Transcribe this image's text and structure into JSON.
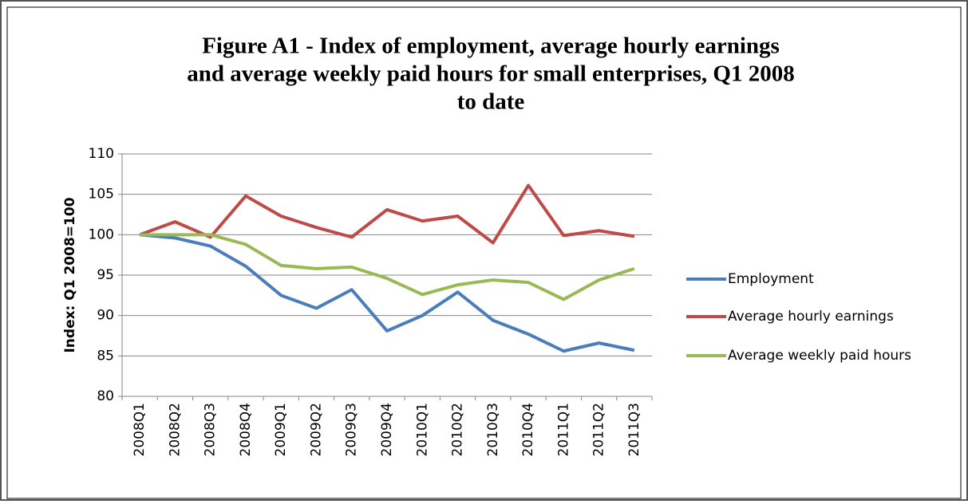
{
  "chart_data": {
    "type": "line",
    "title": [
      "Figure A1 - Index of employment, average hourly earnings",
      "and average weekly paid hours for small enterprises, Q1 2008",
      "to date"
    ],
    "y_label": "Index: Q1 2008=100",
    "categories": [
      "2008Q1",
      "2008Q2",
      "2008Q3",
      "2008Q4",
      "2009Q1",
      "2009Q2",
      "2009Q3",
      "2009Q4",
      "2010Q1",
      "2010Q2",
      "2010Q3",
      "2010Q4",
      "2011Q1",
      "2011Q2",
      "2011Q3"
    ],
    "series": [
      {
        "name": "Employment",
        "color": "#4a7ebb",
        "values": [
          100,
          99.6,
          98.6,
          96.1,
          92.5,
          90.9,
          93.2,
          88.1,
          90.0,
          92.9,
          89.4,
          87.7,
          85.6,
          86.6,
          85.7
        ]
      },
      {
        "name": "Average hourly earnings",
        "color": "#be4b48",
        "values": [
          100,
          101.6,
          99.7,
          104.8,
          102.3,
          100.9,
          99.7,
          103.1,
          101.7,
          102.3,
          99.0,
          106.1,
          99.9,
          100.5,
          99.8
        ]
      },
      {
        "name": "Average weekly paid hours",
        "color": "#98b954",
        "values": [
          100,
          100,
          100,
          98.8,
          96.2,
          95.8,
          96.0,
          94.6,
          92.6,
          93.8,
          94.4,
          94.1,
          92.0,
          94.4,
          95.8
        ]
      }
    ],
    "ylim": [
      80,
      110
    ],
    "yticks": [
      80,
      85,
      90,
      95,
      100,
      105,
      110
    ],
    "grid": true,
    "legend": "right"
  }
}
